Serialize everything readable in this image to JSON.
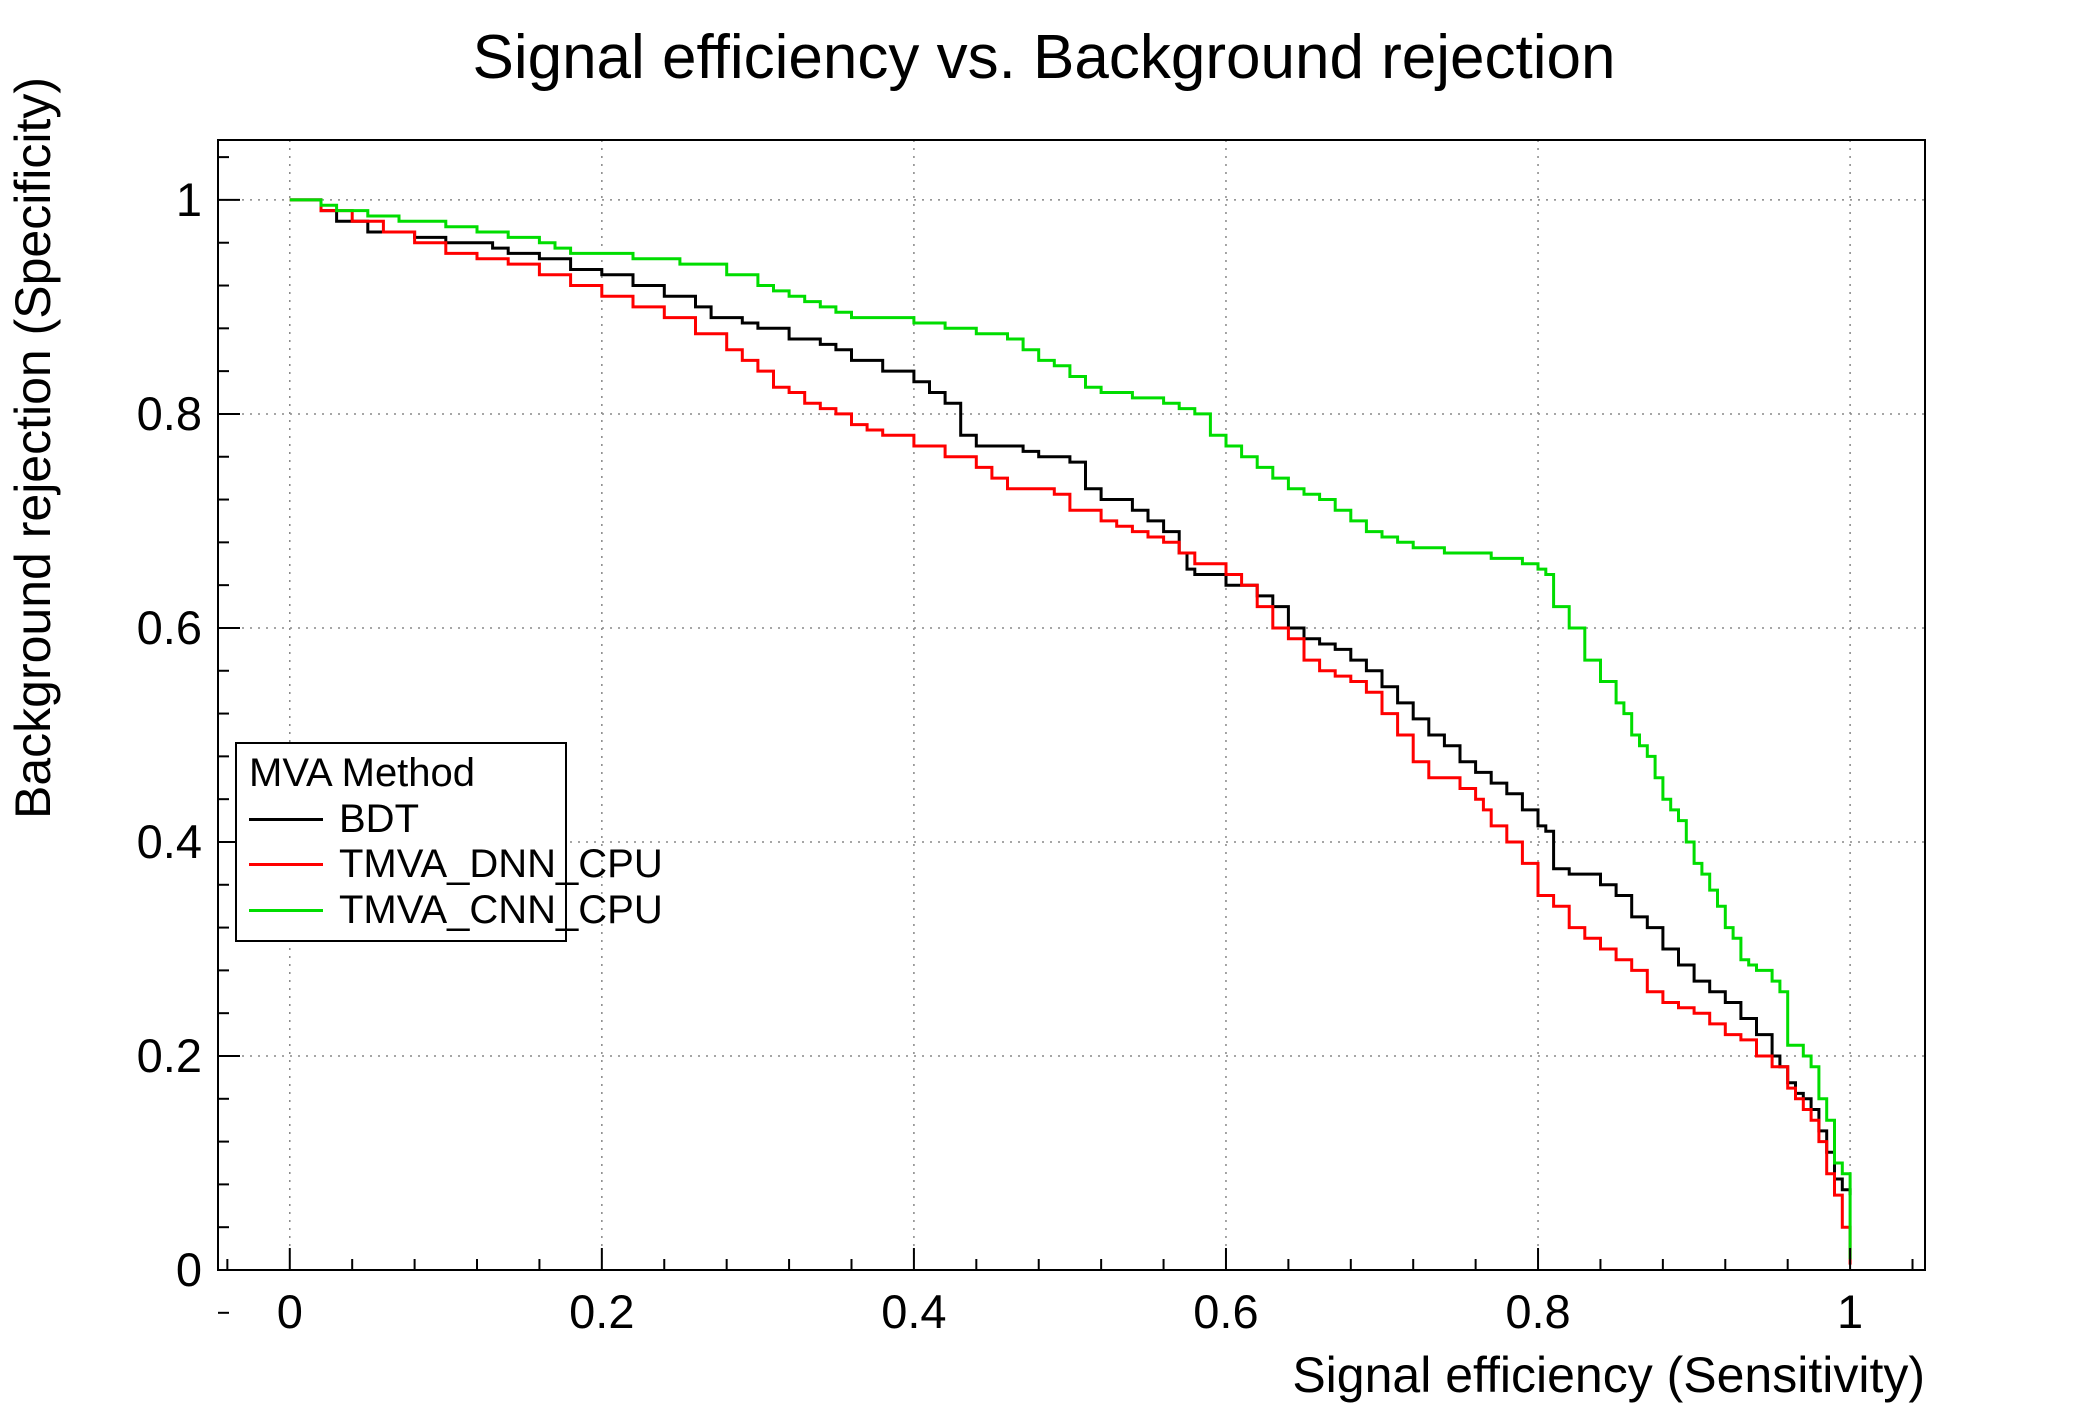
{
  "chart_data": {
    "type": "line",
    "title": "Signal efficiency vs. Background rejection",
    "xlabel": "Signal efficiency (Sensitivity)",
    "ylabel": "Background rejection (Specificity)",
    "xlim": [
      0,
      1
    ],
    "ylim": [
      0,
      1
    ],
    "x_ticks": [
      0,
      0.2,
      0.4,
      0.6,
      0.8,
      1
    ],
    "y_ticks": [
      0,
      0.2,
      0.4,
      0.6,
      0.8,
      1
    ],
    "x_tick_labels": [
      "0",
      "0.2",
      "0.4",
      "0.6",
      "0.8",
      "1"
    ],
    "y_tick_labels": [
      "0",
      "0.2",
      "0.4",
      "0.6",
      "0.8",
      "1"
    ],
    "grid": true,
    "grid_style": "dotted",
    "legend": {
      "title": "MVA Method",
      "position": "bottom-left"
    },
    "colors": {
      "frame": "#000000",
      "grid": "#888888",
      "background": "#ffffff"
    },
    "series": [
      {
        "name": "BDT",
        "color": "#000000",
        "points": [
          [
            0,
            1
          ],
          [
            0.02,
            0.99
          ],
          [
            0.03,
            0.98
          ],
          [
            0.05,
            0.97
          ],
          [
            0.08,
            0.965
          ],
          [
            0.1,
            0.96
          ],
          [
            0.13,
            0.955
          ],
          [
            0.14,
            0.95
          ],
          [
            0.16,
            0.945
          ],
          [
            0.18,
            0.935
          ],
          [
            0.2,
            0.93
          ],
          [
            0.22,
            0.92
          ],
          [
            0.24,
            0.91
          ],
          [
            0.26,
            0.9
          ],
          [
            0.27,
            0.89
          ],
          [
            0.29,
            0.885
          ],
          [
            0.3,
            0.88
          ],
          [
            0.32,
            0.87
          ],
          [
            0.34,
            0.865
          ],
          [
            0.35,
            0.86
          ],
          [
            0.36,
            0.85
          ],
          [
            0.38,
            0.84
          ],
          [
            0.4,
            0.83
          ],
          [
            0.41,
            0.82
          ],
          [
            0.42,
            0.81
          ],
          [
            0.43,
            0.78
          ],
          [
            0.44,
            0.77
          ],
          [
            0.47,
            0.765
          ],
          [
            0.48,
            0.76
          ],
          [
            0.5,
            0.755
          ],
          [
            0.51,
            0.73
          ],
          [
            0.52,
            0.72
          ],
          [
            0.54,
            0.71
          ],
          [
            0.55,
            0.7
          ],
          [
            0.56,
            0.69
          ],
          [
            0.57,
            0.67
          ],
          [
            0.575,
            0.655
          ],
          [
            0.58,
            0.65
          ],
          [
            0.6,
            0.64
          ],
          [
            0.62,
            0.63
          ],
          [
            0.63,
            0.62
          ],
          [
            0.64,
            0.6
          ],
          [
            0.65,
            0.59
          ],
          [
            0.66,
            0.585
          ],
          [
            0.67,
            0.58
          ],
          [
            0.68,
            0.57
          ],
          [
            0.69,
            0.56
          ],
          [
            0.7,
            0.545
          ],
          [
            0.71,
            0.53
          ],
          [
            0.72,
            0.515
          ],
          [
            0.73,
            0.5
          ],
          [
            0.74,
            0.49
          ],
          [
            0.75,
            0.475
          ],
          [
            0.76,
            0.465
          ],
          [
            0.77,
            0.455
          ],
          [
            0.78,
            0.445
          ],
          [
            0.79,
            0.43
          ],
          [
            0.8,
            0.415
          ],
          [
            0.805,
            0.41
          ],
          [
            0.81,
            0.375
          ],
          [
            0.82,
            0.37
          ],
          [
            0.84,
            0.36
          ],
          [
            0.85,
            0.35
          ],
          [
            0.86,
            0.33
          ],
          [
            0.87,
            0.32
          ],
          [
            0.88,
            0.3
          ],
          [
            0.89,
            0.285
          ],
          [
            0.9,
            0.27
          ],
          [
            0.91,
            0.26
          ],
          [
            0.92,
            0.25
          ],
          [
            0.93,
            0.235
          ],
          [
            0.94,
            0.22
          ],
          [
            0.95,
            0.2
          ],
          [
            0.955,
            0.19
          ],
          [
            0.96,
            0.175
          ],
          [
            0.965,
            0.165
          ],
          [
            0.97,
            0.16
          ],
          [
            0.975,
            0.15
          ],
          [
            0.98,
            0.13
          ],
          [
            0.985,
            0.11
          ],
          [
            0.99,
            0.085
          ],
          [
            0.995,
            0.075
          ],
          [
            1,
            0.07
          ]
        ]
      },
      {
        "name": "TMVA_DNN_CPU",
        "color": "#ff0000",
        "points": [
          [
            0,
            1
          ],
          [
            0.02,
            0.99
          ],
          [
            0.04,
            0.98
          ],
          [
            0.06,
            0.97
          ],
          [
            0.08,
            0.96
          ],
          [
            0.1,
            0.95
          ],
          [
            0.12,
            0.945
          ],
          [
            0.14,
            0.94
          ],
          [
            0.16,
            0.93
          ],
          [
            0.18,
            0.92
          ],
          [
            0.2,
            0.91
          ],
          [
            0.22,
            0.9
          ],
          [
            0.24,
            0.89
          ],
          [
            0.26,
            0.875
          ],
          [
            0.28,
            0.86
          ],
          [
            0.29,
            0.85
          ],
          [
            0.3,
            0.84
          ],
          [
            0.31,
            0.825
          ],
          [
            0.32,
            0.82
          ],
          [
            0.33,
            0.81
          ],
          [
            0.34,
            0.805
          ],
          [
            0.35,
            0.8
          ],
          [
            0.36,
            0.79
          ],
          [
            0.37,
            0.785
          ],
          [
            0.38,
            0.78
          ],
          [
            0.4,
            0.77
          ],
          [
            0.42,
            0.76
          ],
          [
            0.44,
            0.75
          ],
          [
            0.45,
            0.74
          ],
          [
            0.46,
            0.73
          ],
          [
            0.49,
            0.725
          ],
          [
            0.5,
            0.71
          ],
          [
            0.52,
            0.7
          ],
          [
            0.53,
            0.695
          ],
          [
            0.54,
            0.69
          ],
          [
            0.55,
            0.685
          ],
          [
            0.56,
            0.68
          ],
          [
            0.57,
            0.67
          ],
          [
            0.58,
            0.66
          ],
          [
            0.6,
            0.65
          ],
          [
            0.61,
            0.64
          ],
          [
            0.62,
            0.62
          ],
          [
            0.63,
            0.6
          ],
          [
            0.64,
            0.59
          ],
          [
            0.65,
            0.57
          ],
          [
            0.66,
            0.56
          ],
          [
            0.67,
            0.555
          ],
          [
            0.68,
            0.55
          ],
          [
            0.69,
            0.54
          ],
          [
            0.7,
            0.52
          ],
          [
            0.71,
            0.5
          ],
          [
            0.72,
            0.475
          ],
          [
            0.73,
            0.46
          ],
          [
            0.75,
            0.45
          ],
          [
            0.76,
            0.44
          ],
          [
            0.765,
            0.43
          ],
          [
            0.77,
            0.415
          ],
          [
            0.78,
            0.4
          ],
          [
            0.79,
            0.38
          ],
          [
            0.8,
            0.35
          ],
          [
            0.81,
            0.34
          ],
          [
            0.82,
            0.32
          ],
          [
            0.83,
            0.31
          ],
          [
            0.84,
            0.3
          ],
          [
            0.85,
            0.29
          ],
          [
            0.86,
            0.28
          ],
          [
            0.87,
            0.26
          ],
          [
            0.88,
            0.25
          ],
          [
            0.89,
            0.245
          ],
          [
            0.9,
            0.24
          ],
          [
            0.91,
            0.23
          ],
          [
            0.92,
            0.22
          ],
          [
            0.93,
            0.215
          ],
          [
            0.94,
            0.2
          ],
          [
            0.95,
            0.19
          ],
          [
            0.96,
            0.17
          ],
          [
            0.965,
            0.16
          ],
          [
            0.97,
            0.15
          ],
          [
            0.975,
            0.14
          ],
          [
            0.98,
            0.12
          ],
          [
            0.985,
            0.09
          ],
          [
            0.99,
            0.07
          ],
          [
            0.995,
            0.04
          ],
          [
            1,
            0.005
          ]
        ]
      },
      {
        "name": "TMVA_CNN_CPU",
        "color": "#00dd00",
        "points": [
          [
            0,
            1
          ],
          [
            0.02,
            0.995
          ],
          [
            0.03,
            0.99
          ],
          [
            0.05,
            0.985
          ],
          [
            0.07,
            0.98
          ],
          [
            0.1,
            0.975
          ],
          [
            0.12,
            0.97
          ],
          [
            0.14,
            0.965
          ],
          [
            0.16,
            0.96
          ],
          [
            0.17,
            0.955
          ],
          [
            0.18,
            0.95
          ],
          [
            0.22,
            0.945
          ],
          [
            0.25,
            0.94
          ],
          [
            0.28,
            0.93
          ],
          [
            0.3,
            0.92
          ],
          [
            0.31,
            0.915
          ],
          [
            0.32,
            0.91
          ],
          [
            0.33,
            0.905
          ],
          [
            0.34,
            0.9
          ],
          [
            0.35,
            0.895
          ],
          [
            0.36,
            0.89
          ],
          [
            0.4,
            0.885
          ],
          [
            0.42,
            0.88
          ],
          [
            0.44,
            0.875
          ],
          [
            0.46,
            0.87
          ],
          [
            0.47,
            0.86
          ],
          [
            0.48,
            0.85
          ],
          [
            0.49,
            0.845
          ],
          [
            0.5,
            0.835
          ],
          [
            0.51,
            0.825
          ],
          [
            0.52,
            0.82
          ],
          [
            0.54,
            0.815
          ],
          [
            0.56,
            0.81
          ],
          [
            0.57,
            0.805
          ],
          [
            0.58,
            0.8
          ],
          [
            0.59,
            0.78
          ],
          [
            0.6,
            0.77
          ],
          [
            0.61,
            0.76
          ],
          [
            0.62,
            0.75
          ],
          [
            0.63,
            0.74
          ],
          [
            0.64,
            0.73
          ],
          [
            0.65,
            0.725
          ],
          [
            0.66,
            0.72
          ],
          [
            0.67,
            0.71
          ],
          [
            0.68,
            0.7
          ],
          [
            0.69,
            0.69
          ],
          [
            0.7,
            0.685
          ],
          [
            0.71,
            0.68
          ],
          [
            0.72,
            0.675
          ],
          [
            0.74,
            0.67
          ],
          [
            0.77,
            0.665
          ],
          [
            0.79,
            0.66
          ],
          [
            0.8,
            0.655
          ],
          [
            0.805,
            0.65
          ],
          [
            0.81,
            0.62
          ],
          [
            0.82,
            0.6
          ],
          [
            0.83,
            0.57
          ],
          [
            0.84,
            0.55
          ],
          [
            0.85,
            0.53
          ],
          [
            0.855,
            0.52
          ],
          [
            0.86,
            0.5
          ],
          [
            0.865,
            0.49
          ],
          [
            0.87,
            0.48
          ],
          [
            0.875,
            0.46
          ],
          [
            0.88,
            0.44
          ],
          [
            0.885,
            0.43
          ],
          [
            0.89,
            0.42
          ],
          [
            0.895,
            0.4
          ],
          [
            0.9,
            0.38
          ],
          [
            0.905,
            0.37
          ],
          [
            0.91,
            0.355
          ],
          [
            0.915,
            0.34
          ],
          [
            0.92,
            0.32
          ],
          [
            0.925,
            0.31
          ],
          [
            0.93,
            0.29
          ],
          [
            0.935,
            0.285
          ],
          [
            0.94,
            0.28
          ],
          [
            0.95,
            0.27
          ],
          [
            0.955,
            0.26
          ],
          [
            0.96,
            0.21
          ],
          [
            0.97,
            0.2
          ],
          [
            0.975,
            0.19
          ],
          [
            0.98,
            0.16
          ],
          [
            0.985,
            0.14
          ],
          [
            0.99,
            0.1
          ],
          [
            0.995,
            0.09
          ],
          [
            1,
            0.01
          ]
        ]
      }
    ]
  }
}
